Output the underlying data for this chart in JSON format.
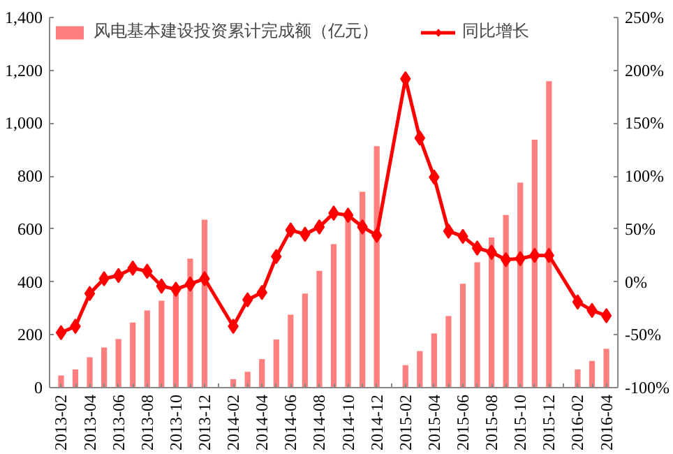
{
  "chart_data": {
    "type": "bar",
    "categories": [
      "2013-02",
      null,
      "2013-04",
      null,
      "2013-06",
      null,
      "2013-08",
      null,
      "2013-10",
      null,
      "2013-12",
      null,
      "2014-02",
      null,
      "2014-04",
      null,
      "2014-06",
      null,
      "2014-08",
      null,
      "2014-10",
      null,
      "2014-12",
      null,
      "2015-02",
      null,
      "2015-04",
      null,
      "2015-06",
      null,
      "2015-08",
      null,
      "2015-10",
      null,
      "2015-12",
      null,
      "2016-02",
      null,
      "2016-04"
    ],
    "series": [
      {
        "name": "风电基本建设投资累计完成额（亿元）",
        "color": "#ff7f7f",
        "values": [
          46,
          69,
          115,
          152,
          184,
          246,
          292,
          329,
          361,
          488,
          635,
          null,
          32,
          60,
          108,
          182,
          276,
          356,
          442,
          543,
          640,
          741,
          913,
          null,
          85,
          138,
          205,
          271,
          393,
          474,
          568,
          653,
          775,
          938,
          1159,
          null,
          69,
          101,
          147
        ]
      },
      {
        "name": "同比增长",
        "type": "line",
        "axis": "y2",
        "color": "#ff0000",
        "marker": "diamond",
        "values": [
          -48,
          -42,
          -11,
          3,
          6,
          13,
          10,
          -4,
          -7,
          -2,
          3,
          null,
          -42,
          -17,
          -10,
          24,
          49,
          45,
          52,
          65,
          63,
          52,
          44,
          null,
          192,
          136,
          99,
          48,
          43,
          32,
          28,
          21,
          22,
          25,
          25,
          null,
          -19,
          -27,
          -32
        ]
      }
    ],
    "ylim": [
      0,
      1400
    ],
    "yticks": [
      0,
      {
        "value": 200,
        "label": "200"
      },
      {
        "value": 400,
        "label": "400"
      },
      {
        "value": 600,
        "label": "600"
      },
      {
        "value": 800,
        "label": "800"
      },
      {
        "value": 1000,
        "label": "1,000"
      },
      {
        "value": 1200,
        "label": "1,200"
      },
      {
        "value": 1400,
        "label": "1,400"
      }
    ],
    "y2lim": [
      -100,
      250
    ],
    "y2ticks": [
      {
        "value": -100,
        "label": "-100%"
      },
      {
        "value": -50,
        "label": "-50%"
      },
      {
        "value": 0,
        "label": "0%"
      },
      {
        "value": 50,
        "label": "50%"
      },
      {
        "value": 100,
        "label": "100%"
      },
      {
        "value": 150,
        "label": "150%"
      },
      {
        "value": 200,
        "label": "200%"
      },
      {
        "value": 250,
        "label": "250%"
      }
    ],
    "grid": false,
    "legend": "top"
  }
}
